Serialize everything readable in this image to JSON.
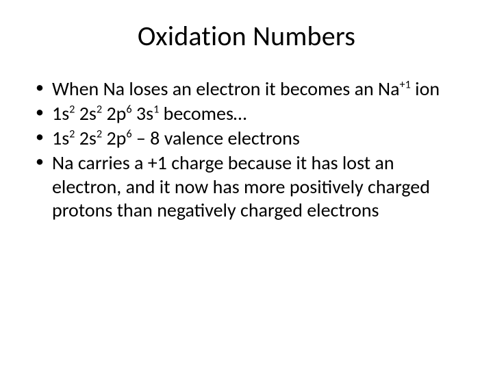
{
  "slide": {
    "background_color": "#ffffff",
    "text_color": "#000000",
    "title": "Oxidation Numbers",
    "title_fontsize": 40,
    "body_fontsize": 28,
    "bullets": [
      {
        "segments": [
          {
            "t": "When Na loses an electron it becomes an Na"
          },
          {
            "t": "+1",
            "sup": true
          },
          {
            "t": " ion"
          }
        ]
      },
      {
        "segments": [
          {
            "t": "1s"
          },
          {
            "t": "2",
            "sup": true
          },
          {
            "t": " 2s"
          },
          {
            "t": "2",
            "sup": true
          },
          {
            "t": " 2p"
          },
          {
            "t": "6",
            "sup": true
          },
          {
            "t": " 3s"
          },
          {
            "t": "1",
            "sup": true
          },
          {
            "t": " becomes…"
          }
        ]
      },
      {
        "segments": [
          {
            "t": "1s"
          },
          {
            "t": "2",
            "sup": true
          },
          {
            "t": " 2s"
          },
          {
            "t": "2",
            "sup": true
          },
          {
            "t": " 2p"
          },
          {
            "t": "6",
            "sup": true
          },
          {
            "t": " – 8 valence electrons"
          }
        ]
      },
      {
        "segments": [
          {
            "t": "Na carries a +1 charge because it has lost an electron, and it now has more positively charged protons than negatively charged electrons"
          }
        ]
      }
    ]
  }
}
